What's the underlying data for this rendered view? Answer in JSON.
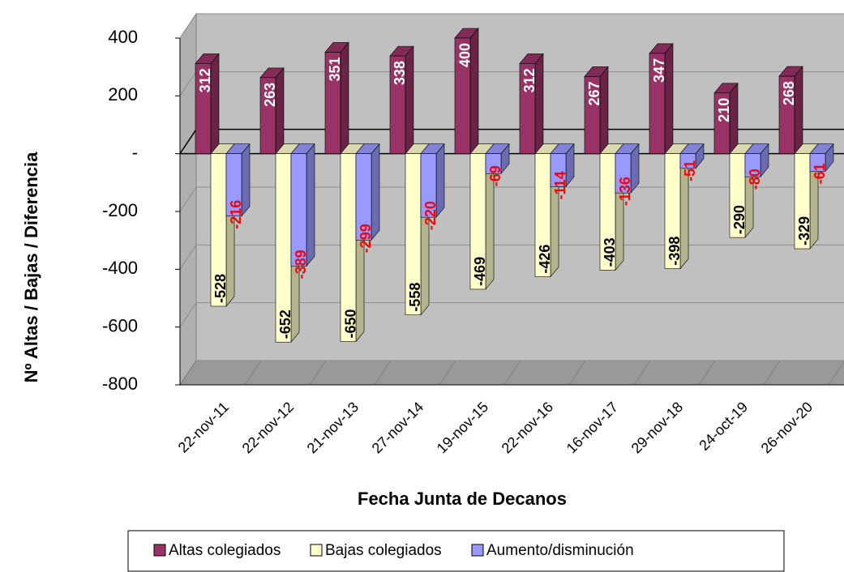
{
  "chart_data": {
    "type": "bar3d",
    "y_label": "Nº Altas / Bajas / Diferencia",
    "x_label": "Fecha Junta de Decanos",
    "categories": [
      "22-nov-11",
      "22-nov-12",
      "21-nov-13",
      "27-nov-14",
      "19-nov-15",
      "22-nov-16",
      "16-nov-17",
      "29-nov-18",
      "24-oct-19",
      "26-nov-20"
    ],
    "series": [
      {
        "name": "Altas colegiados",
        "color": "#993366",
        "label_color": "#ffffff",
        "values": [
          312,
          263,
          351,
          338,
          400,
          312,
          267,
          347,
          210,
          268
        ]
      },
      {
        "name": "Bajas colegiados",
        "color": "#ffffcc",
        "label_color": "#000000",
        "values": [
          -528,
          -652,
          -650,
          -558,
          -469,
          -426,
          -403,
          -398,
          -290,
          -329
        ]
      },
      {
        "name": "Aumento/disminución",
        "color": "#9999ff",
        "label_color": "#ff0000",
        "values": [
          -216,
          -389,
          -299,
          -220,
          -69,
          -114,
          -136,
          -51,
          -80,
          -61
        ]
      }
    ],
    "ylim": [
      -800,
      400
    ],
    "yticks": [
      400,
      200,
      {
        "value": 0,
        "label": "-"
      },
      -200,
      -400,
      -600,
      -800
    ],
    "grid": true
  }
}
